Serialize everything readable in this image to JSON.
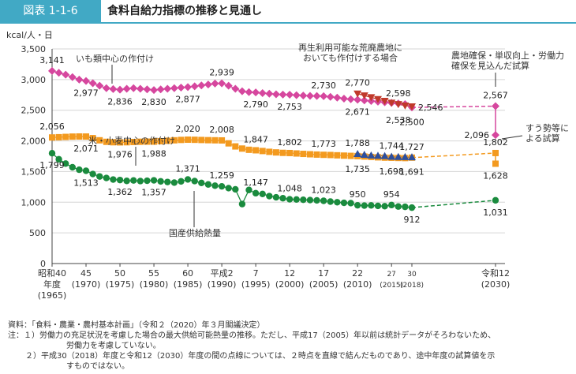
{
  "header": {
    "badge": "図表 1-1-6",
    "title": "食料自給力指標の推移と見通し"
  },
  "chart_data": {
    "type": "line",
    "ylabel": "kcal/人・日",
    "ylim": [
      0,
      3500
    ],
    "yticks": [
      "0",
      "500",
      "1,000",
      "1,500",
      "2,000",
      "2,500",
      "3,000",
      "3,500"
    ],
    "grid": true,
    "xticks": [
      {
        "year": 1965,
        "line1": "昭和40",
        "line2": "年度",
        "line3": "(1965)"
      },
      {
        "year": 1970,
        "line1": "45",
        "line2": "(1970)"
      },
      {
        "year": 1975,
        "line1": "50",
        "line2": "(1975)"
      },
      {
        "year": 1980,
        "line1": "55",
        "line2": "(1980)"
      },
      {
        "year": 1985,
        "line1": "60",
        "line2": "(1985)"
      },
      {
        "year": 1990,
        "line1": "平成2",
        "line2": "(1990)"
      },
      {
        "year": 1995,
        "line1": "7",
        "line2": "(1995)"
      },
      {
        "year": 2000,
        "line1": "12",
        "line2": "(2000)"
      },
      {
        "year": 2005,
        "line1": "17",
        "line2": "(2005)"
      },
      {
        "year": 2010,
        "line1": "22",
        "line2": "(2010)"
      },
      {
        "year": 2015,
        "line1": "27",
        "line2": "(2015)"
      },
      {
        "year": 2018,
        "line1": "30",
        "line2": "(2018)"
      },
      {
        "year": 2030,
        "line1": "令和12",
        "line2": "(2030)"
      }
    ],
    "series": [
      {
        "name": "いも類中心の作付け",
        "color": "#d6479e",
        "marker": "diamond",
        "x": [
          1965,
          1966,
          1967,
          1968,
          1969,
          1970,
          1971,
          1972,
          1973,
          1974,
          1975,
          1976,
          1977,
          1978,
          1979,
          1980,
          1981,
          1982,
          1983,
          1984,
          1985,
          1986,
          1987,
          1988,
          1989,
          1990,
          1991,
          1992,
          1993,
          1994,
          1995,
          1996,
          1997,
          1998,
          1999,
          2000,
          2001,
          2002,
          2003,
          2004,
          2005,
          2006,
          2007,
          2008,
          2009,
          2010,
          2011,
          2012,
          2013,
          2014,
          2015,
          2016,
          2017,
          2018
        ],
        "values": [
          3141,
          3110,
          3080,
          3040,
          3000,
          2977,
          2940,
          2900,
          2860,
          2845,
          2836,
          2850,
          2860,
          2850,
          2840,
          2830,
          2840,
          2850,
          2860,
          2870,
          2877,
          2890,
          2905,
          2920,
          2935,
          2939,
          2900,
          2850,
          2810,
          2795,
          2790,
          2780,
          2770,
          2760,
          2755,
          2753,
          2745,
          2740,
          2735,
          2732,
          2730,
          2718,
          2705,
          2690,
          2680,
          2671,
          2660,
          2650,
          2640,
          2630,
          2620,
          2610,
          2600,
          2546
        ]
      },
      {
        "name": "米・小麦中心の作付け",
        "color": "#f39a1f",
        "marker": "square",
        "x": [
          1965,
          1966,
          1967,
          1968,
          1969,
          1970,
          1971,
          1972,
          1973,
          1974,
          1975,
          1976,
          1977,
          1978,
          1979,
          1980,
          1981,
          1982,
          1983,
          1984,
          1985,
          1986,
          1987,
          1988,
          1989,
          1990,
          1991,
          1992,
          1993,
          1994,
          1995,
          1996,
          1997,
          1998,
          1999,
          2000,
          2001,
          2002,
          2003,
          2004,
          2005,
          2006,
          2007,
          2008,
          2009,
          2010,
          2011,
          2012,
          2013,
          2014,
          2015,
          2016,
          2017,
          2018
        ],
        "values": [
          2056,
          2060,
          2065,
          2070,
          2072,
          2071,
          2045,
          2010,
          1985,
          1978,
          1976,
          1978,
          1982,
          1986,
          1988,
          1988,
          1995,
          2002,
          2010,
          2016,
          2020,
          2018,
          2015,
          2012,
          2010,
          2008,
          1960,
          1910,
          1875,
          1855,
          1847,
          1835,
          1822,
          1812,
          1805,
          1802,
          1795,
          1788,
          1782,
          1777,
          1773,
          1770,
          1765,
          1760,
          1756,
          1752,
          1745,
          1738,
          1732,
          1727,
          1725,
          1722,
          1720,
          1727
        ]
      },
      {
        "name": "国産供給熱量",
        "color": "#1a8b3e",
        "marker": "circle",
        "x": [
          1965,
          1966,
          1967,
          1968,
          1969,
          1970,
          1971,
          1972,
          1973,
          1974,
          1975,
          1976,
          1977,
          1978,
          1979,
          1980,
          1981,
          1982,
          1983,
          1984,
          1985,
          1986,
          1987,
          1988,
          1989,
          1990,
          1991,
          1992,
          1993,
          1994,
          1995,
          1996,
          1997,
          1998,
          1999,
          2000,
          2001,
          2002,
          2003,
          2004,
          2005,
          2006,
          2007,
          2008,
          2009,
          2010,
          2011,
          2012,
          2013,
          2014,
          2015,
          2016,
          2017,
          2018
        ],
        "values": [
          1799,
          1700,
          1630,
          1570,
          1530,
          1513,
          1460,
          1420,
          1395,
          1370,
          1362,
          1348,
          1355,
          1345,
          1350,
          1357,
          1340,
          1330,
          1320,
          1340,
          1371,
          1345,
          1315,
          1290,
          1270,
          1259,
          1230,
          1210,
          970,
          1200,
          1147,
          1135,
          1100,
          1080,
          1065,
          1048,
          1045,
          1040,
          1035,
          1030,
          1023,
          1010,
          1000,
          990,
          985,
          950,
          945,
          948,
          940,
          935,
          954,
          930,
          925,
          912
        ]
      },
      {
        "name": "再生利用可能な荒廃農地においても作付けする場合（いも類中心）",
        "color": "#c0392b",
        "marker": "triangle-down",
        "x": [
          2010,
          2011,
          2012,
          2013,
          2014,
          2015,
          2016,
          2017,
          2018
        ],
        "values": [
          2770,
          2740,
          2710,
          2680,
          2650,
          2620,
          2598,
          2575,
          2560
        ]
      },
      {
        "name": "再生利用可能な荒廃農地においても作付けする場合（米・小麦中心）",
        "color": "#2d4f9e",
        "marker": "triangle-up",
        "x": [
          2010,
          2011,
          2012,
          2013,
          2014,
          2015,
          2016,
          2017,
          2018
        ],
        "values": [
          1788,
          1775,
          1765,
          1760,
          1755,
          1744,
          1740,
          1738,
          1735
        ]
      }
    ],
    "projections": [
      {
        "from": [
          2018,
          2546
        ],
        "to": [
          2030,
          2567
        ],
        "color": "#d6479e"
      },
      {
        "from": [
          2018,
          1727
        ],
        "to": [
          2030,
          1802
        ],
        "color": "#f39a1f"
      },
      {
        "from": [
          2018,
          912
        ],
        "to": [
          2030,
          1031
        ],
        "color": "#1a8b3e"
      }
    ],
    "projection_points": [
      {
        "x": 2030,
        "value": 2567,
        "color": "#d6479e",
        "marker": "diamond"
      },
      {
        "x": 2030,
        "value": 2096,
        "color": "#d6479e",
        "marker": "diamond"
      },
      {
        "x": 2030,
        "value": 1802,
        "color": "#f39a1f",
        "marker": "square"
      },
      {
        "x": 2030,
        "value": 1628,
        "color": "#f39a1f",
        "marker": "square"
      },
      {
        "x": 2030,
        "value": 1031,
        "color": "#1a8b3e",
        "marker": "circle"
      }
    ],
    "data_labels": [
      {
        "x": 1965,
        "y": 3141,
        "text": "3,141",
        "pos": "above"
      },
      {
        "x": 1970,
        "y": 2977,
        "text": "2,977",
        "pos": "below"
      },
      {
        "x": 1975,
        "y": 2836,
        "text": "2,836",
        "pos": "below"
      },
      {
        "x": 1980,
        "y": 2830,
        "text": "2,830",
        "pos": "below"
      },
      {
        "x": 1985,
        "y": 2877,
        "text": "2,877",
        "pos": "below"
      },
      {
        "x": 1990,
        "y": 2939,
        "text": "2,939",
        "pos": "above"
      },
      {
        "x": 1995,
        "y": 2790,
        "text": "2,790",
        "pos": "below"
      },
      {
        "x": 2000,
        "y": 2753,
        "text": "2,753",
        "pos": "below"
      },
      {
        "x": 2005,
        "y": 2730,
        "text": "2,730",
        "pos": "above"
      },
      {
        "x": 2010,
        "y": 2770,
        "text": "2,770",
        "pos": "above"
      },
      {
        "x": 2010,
        "y": 2671,
        "text": "2,671",
        "pos": "below"
      },
      {
        "x": 2016,
        "y": 2598,
        "text": "2,598",
        "pos": "above"
      },
      {
        "x": 2016,
        "y": 2538,
        "text": "2,538",
        "pos": "below"
      },
      {
        "x": 2018,
        "y": 2546,
        "text": "2,546",
        "pos": "right"
      },
      {
        "x": 2018,
        "y": 2500,
        "text": "2,500",
        "pos": "below"
      },
      {
        "x": 1965,
        "y": 2056,
        "text": "2,056",
        "pos": "above"
      },
      {
        "x": 1970,
        "y": 2071,
        "text": "2,071",
        "pos": "below"
      },
      {
        "x": 1975,
        "y": 1976,
        "text": "1,976",
        "pos": "below"
      },
      {
        "x": 1980,
        "y": 1988,
        "text": "1,988",
        "pos": "below"
      },
      {
        "x": 1985,
        "y": 2020,
        "text": "2,020",
        "pos": "above"
      },
      {
        "x": 1990,
        "y": 2008,
        "text": "2,008",
        "pos": "above"
      },
      {
        "x": 1995,
        "y": 1847,
        "text": "1,847",
        "pos": "above"
      },
      {
        "x": 2000,
        "y": 1802,
        "text": "1,802",
        "pos": "above"
      },
      {
        "x": 2005,
        "y": 1773,
        "text": "1,773",
        "pos": "above"
      },
      {
        "x": 2010,
        "y": 1788,
        "text": "1,788",
        "pos": "above"
      },
      {
        "x": 2010,
        "y": 1735,
        "text": "1,735",
        "pos": "below"
      },
      {
        "x": 2015,
        "y": 1744,
        "text": "1,744",
        "pos": "above"
      },
      {
        "x": 2015,
        "y": 1698,
        "text": "1,698",
        "pos": "below"
      },
      {
        "x": 2018,
        "y": 1727,
        "text": "1,727",
        "pos": "above"
      },
      {
        "x": 2018,
        "y": 1691,
        "text": "1,691",
        "pos": "below"
      },
      {
        "x": 1965,
        "y": 1799,
        "text": "1,799",
        "pos": "below"
      },
      {
        "x": 1970,
        "y": 1513,
        "text": "1,513",
        "pos": "below"
      },
      {
        "x": 1975,
        "y": 1362,
        "text": "1,362",
        "pos": "below"
      },
      {
        "x": 1980,
        "y": 1357,
        "text": "1,357",
        "pos": "below"
      },
      {
        "x": 1985,
        "y": 1371,
        "text": "1,371",
        "pos": "above"
      },
      {
        "x": 1990,
        "y": 1259,
        "text": "1,259",
        "pos": "above"
      },
      {
        "x": 1995,
        "y": 1147,
        "text": "1,147",
        "pos": "above"
      },
      {
        "x": 2000,
        "y": 1048,
        "text": "1,048",
        "pos": "above"
      },
      {
        "x": 2005,
        "y": 1023,
        "text": "1,023",
        "pos": "above"
      },
      {
        "x": 2010,
        "y": 950,
        "text": "950",
        "pos": "above"
      },
      {
        "x": 2015,
        "y": 954,
        "text": "954",
        "pos": "above"
      },
      {
        "x": 2018,
        "y": 912,
        "text": "912",
        "pos": "below"
      },
      {
        "x": 2030,
        "y": 2567,
        "text": "2,567",
        "pos": "above"
      },
      {
        "x": 2030,
        "y": 2096,
        "text": "2,096",
        "pos": "left"
      },
      {
        "x": 2030,
        "y": 1802,
        "text": "1,802",
        "pos": "above"
      },
      {
        "x": 2030,
        "y": 1628,
        "text": "1,628",
        "pos": "below"
      },
      {
        "x": 2030,
        "y": 1031,
        "text": "1,031",
        "pos": "below"
      }
    ],
    "annotations": [
      {
        "id": "imo",
        "lines": [
          "いも類中心の作付け"
        ]
      },
      {
        "id": "kome",
        "lines": [
          "米・小麦中心の作付け"
        ]
      },
      {
        "id": "kokusan",
        "lines": [
          "国産供給熱量"
        ]
      },
      {
        "id": "kohai",
        "lines": [
          "再生利用可能な荒廃農地に",
          "おいても作付けする場合"
        ]
      },
      {
        "id": "noch",
        "lines": [
          "農地確保・単収向上・労働力",
          "確保を見込んだ試算"
        ]
      },
      {
        "id": "suu",
        "lines": [
          "すう勢等に",
          "よる試算"
        ]
      }
    ]
  },
  "notes": {
    "source": "資料：「食料・農業・農村基本計画」（令和２（2020）年３月閣議決定）",
    "note1_line1": "注：１）労働力の充足状況を考慮した場合の最大供給可能熱量の推移。ただし、平成17（2005）年以前は統計データがそろわないため、",
    "note1_line2": "労働力を考慮していない。",
    "note2_line1": "２）平成30（2018）年度と令和12（2030）年度の間の点線については、２時点を直線で結んだものであり、途中年度の試算値を示",
    "note2_line2": "すものではない。"
  }
}
